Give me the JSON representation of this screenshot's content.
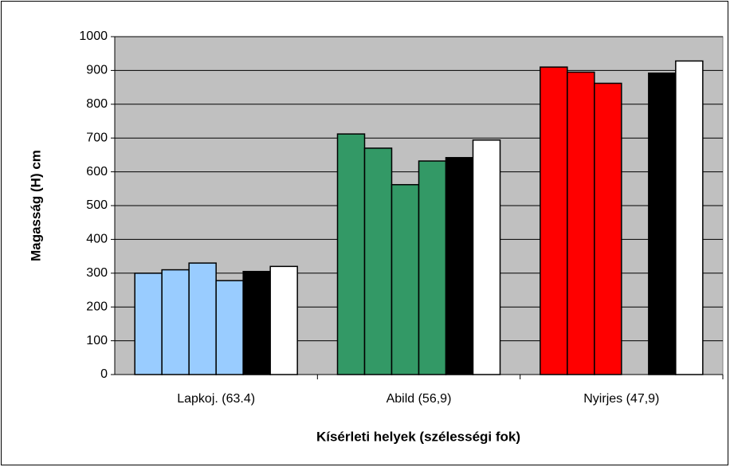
{
  "chart_data": {
    "type": "bar",
    "x_label": "Kísérleti helyek  (szélességi fok)",
    "y_label": "Magasság  (H)  cm",
    "categories": [
      "Lapkoj. (63.4)",
      "Abild (56,9)",
      "Nyirjes (47,9)"
    ],
    "series": [
      {
        "colors": [
          "#99ccff",
          "#339966",
          "#ff0000"
        ],
        "values": [
          300,
          712,
          910
        ]
      },
      {
        "colors": [
          "#99ccff",
          "#339966",
          "#ff0000"
        ],
        "values": [
          310,
          670,
          895
        ]
      },
      {
        "colors": [
          "#99ccff",
          "#339966",
          "#ff0000"
        ],
        "values": [
          330,
          562,
          862
        ]
      },
      {
        "colors": [
          "#99ccff",
          "#339966",
          "#ff0000"
        ],
        "values": [
          278,
          632,
          null
        ]
      },
      {
        "color": "#000000",
        "values": [
          305,
          642,
          892
        ]
      },
      {
        "color": "#ffffff",
        "values": [
          320,
          694,
          928
        ]
      }
    ],
    "ylim": [
      0,
      1000
    ],
    "yticks": [
      0,
      100,
      200,
      300,
      400,
      500,
      600,
      700,
      800,
      900,
      1000
    ],
    "grid": true,
    "plot_background": "#c0c0c0"
  }
}
